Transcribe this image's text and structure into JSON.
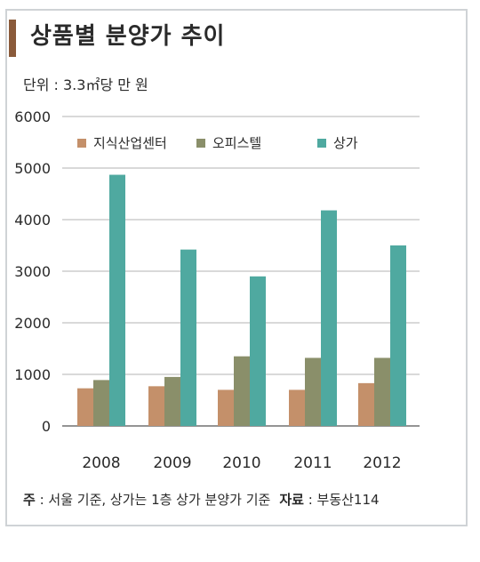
{
  "header": {
    "title": "상품별 분양가 추이",
    "unit": "단위 : 3.3㎡당 만 원"
  },
  "footnote": {
    "note_label": "주",
    "note_text": " : 서울 기준, 상가는 1층 상가 분양가 기준",
    "source_label": "자료",
    "source_text": " : 부동산114"
  },
  "colors": {
    "knowledge_center": "#c4906a",
    "officetel": "#8a8f6a",
    "retail": "#4fa9a0",
    "title_accent": "#8a5a3a",
    "grid": "#9a9a9a"
  },
  "chart_data": {
    "type": "bar",
    "categories": [
      "2008",
      "2009",
      "2010",
      "2011",
      "2012"
    ],
    "series": [
      {
        "name": "지식산업센터",
        "values": [
          730,
          770,
          700,
          700,
          830
        ]
      },
      {
        "name": "오피스텔",
        "values": [
          890,
          950,
          1350,
          1320,
          1320
        ]
      },
      {
        "name": "상가",
        "values": [
          4870,
          3420,
          2900,
          4180,
          3500
        ]
      }
    ],
    "yticks": [
      "0",
      "1000",
      "2000",
      "3000",
      "4000",
      "5000",
      "6000"
    ],
    "ylim": [
      0,
      6000
    ],
    "grid": true,
    "legend_position": "top"
  }
}
